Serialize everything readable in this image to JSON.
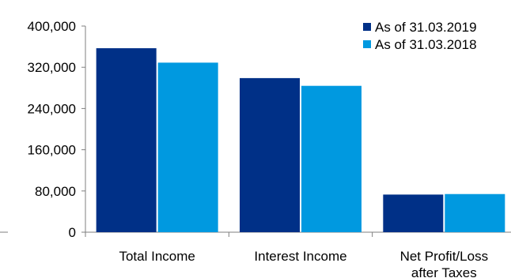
{
  "chart_data": {
    "type": "bar",
    "categories": [
      [
        "Total Income"
      ],
      [
        "Interest Income"
      ],
      [
        "Net Profit/Loss",
        "after Taxes"
      ]
    ],
    "series": [
      {
        "name": "As of 31.03.2019",
        "color": "#003087",
        "values": [
          357000,
          299000,
          73000
        ]
      },
      {
        "name": "As of 31.03.2018",
        "color": "#0099e0",
        "values": [
          329000,
          284000,
          74000
        ]
      }
    ],
    "ylim": [
      0,
      400000
    ],
    "yticks": [
      0,
      80000,
      160000,
      240000,
      320000,
      400000
    ],
    "ytick_labels": [
      "0",
      "80,000",
      "160,000",
      "240,000",
      "320,000",
      "400,000"
    ],
    "legend_position": "top-right",
    "grid": false
  }
}
